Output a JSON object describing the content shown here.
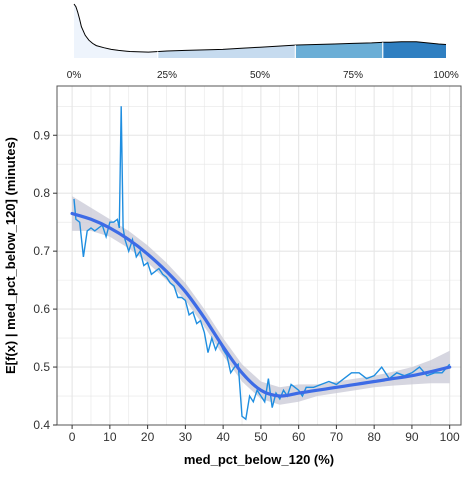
{
  "colors": {
    "raw_line": "#1f8ee0",
    "smooth_line": "#3d6be6",
    "ci_band": "#c8c8d6",
    "grid": "#e6e6e6",
    "quartile_fills": [
      "#eef4fc",
      "#c6dbef",
      "#6baed6",
      "#2f7fc1"
    ]
  },
  "chart_data": [
    {
      "type": "area",
      "description_role": "distribution",
      "quartile_labels": [
        "0%",
        "25%",
        "50%",
        "75%",
        "100%"
      ],
      "quartile_x": [
        0,
        22.5,
        59.5,
        83,
        100
      ],
      "density": {
        "x": [
          0,
          0.5,
          1,
          1.5,
          2,
          3,
          4,
          5,
          6,
          8,
          10,
          12,
          15,
          20,
          25,
          30,
          35,
          40,
          45,
          50,
          55,
          60,
          65,
          70,
          75,
          80,
          83,
          85,
          88,
          92,
          95,
          98,
          100
        ],
        "y": [
          1.0,
          0.95,
          0.85,
          0.72,
          0.58,
          0.42,
          0.33,
          0.27,
          0.23,
          0.19,
          0.16,
          0.14,
          0.12,
          0.11,
          0.13,
          0.14,
          0.15,
          0.16,
          0.18,
          0.2,
          0.22,
          0.24,
          0.25,
          0.26,
          0.27,
          0.28,
          0.29,
          0.29,
          0.3,
          0.3,
          0.28,
          0.26,
          0.25
        ]
      }
    },
    {
      "type": "line",
      "xlabel": "med_pct_below_120 (%)",
      "ylabel": "E[f(x) | med_pct_below_120] (minutes)",
      "xlim": [
        -4,
        103
      ],
      "ylim": [
        0.4,
        0.985
      ],
      "xticks": [
        0,
        10,
        20,
        30,
        40,
        50,
        60,
        70,
        80,
        90,
        100
      ],
      "yticks": [
        0.4,
        0.5,
        0.6,
        0.7,
        0.8,
        0.9
      ],
      "grid": true,
      "series": [
        {
          "kind": "raw",
          "x": [
            0.5,
            1,
            2,
            3,
            4,
            5,
            6,
            7,
            8,
            9,
            10,
            11,
            12,
            12.5,
            13,
            13.5,
            14,
            15,
            16,
            17,
            18,
            19,
            20,
            21,
            22,
            23,
            24,
            25,
            26,
            27,
            28,
            29,
            30,
            31,
            32,
            33,
            34,
            35,
            36,
            37,
            38,
            39,
            40,
            41,
            42,
            43,
            44,
            45,
            46,
            47,
            48,
            49,
            50,
            51,
            52,
            53,
            54,
            55,
            56,
            57,
            58,
            59,
            60,
            61,
            62,
            64,
            66,
            68,
            70,
            72,
            74,
            76,
            78,
            80,
            82,
            84,
            86,
            88,
            90,
            92,
            94,
            96,
            98,
            100
          ],
          "values": [
            0.79,
            0.755,
            0.75,
            0.69,
            0.735,
            0.74,
            0.735,
            0.74,
            0.745,
            0.725,
            0.75,
            0.75,
            0.755,
            0.74,
            0.95,
            0.74,
            0.72,
            0.7,
            0.72,
            0.69,
            0.7,
            0.675,
            0.68,
            0.66,
            0.665,
            0.67,
            0.66,
            0.655,
            0.645,
            0.64,
            0.62,
            0.62,
            0.615,
            0.59,
            0.595,
            0.575,
            0.58,
            0.56,
            0.525,
            0.55,
            0.53,
            0.545,
            0.53,
            0.52,
            0.49,
            0.5,
            0.505,
            0.415,
            0.41,
            0.45,
            0.44,
            0.46,
            0.45,
            0.44,
            0.48,
            0.43,
            0.455,
            0.445,
            0.46,
            0.45,
            0.47,
            0.465,
            0.46,
            0.45,
            0.465,
            0.465,
            0.47,
            0.475,
            0.47,
            0.48,
            0.49,
            0.49,
            0.48,
            0.485,
            0.5,
            0.48,
            0.49,
            0.485,
            0.49,
            0.5,
            0.485,
            0.49,
            0.49,
            0.505
          ]
        },
        {
          "kind": "smooth",
          "x": [
            0,
            5,
            10,
            15,
            20,
            25,
            30,
            35,
            40,
            45,
            50,
            55,
            60,
            65,
            70,
            75,
            80,
            85,
            90,
            95,
            100
          ],
          "values": [
            0.765,
            0.755,
            0.74,
            0.72,
            0.695,
            0.665,
            0.63,
            0.585,
            0.535,
            0.49,
            0.46,
            0.45,
            0.455,
            0.46,
            0.465,
            0.47,
            0.475,
            0.48,
            0.485,
            0.492,
            0.5
          ],
          "ci_lower": [
            0.735,
            0.735,
            0.725,
            0.705,
            0.68,
            0.65,
            0.615,
            0.57,
            0.52,
            0.475,
            0.445,
            0.435,
            0.44,
            0.45,
            0.455,
            0.46,
            0.465,
            0.468,
            0.47,
            0.472,
            0.472
          ],
          "ci_upper": [
            0.795,
            0.775,
            0.755,
            0.735,
            0.71,
            0.68,
            0.645,
            0.6,
            0.55,
            0.505,
            0.475,
            0.465,
            0.47,
            0.47,
            0.475,
            0.48,
            0.485,
            0.492,
            0.5,
            0.512,
            0.528
          ]
        }
      ]
    }
  ]
}
